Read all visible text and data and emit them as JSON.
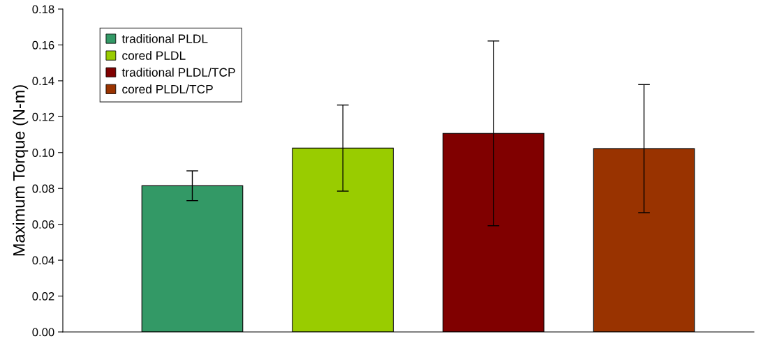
{
  "chart_data": {
    "type": "bar",
    "ylabel": "Maximum Torque (N-m)",
    "categories": [
      null,
      null,
      null,
      null
    ],
    "series": [
      {
        "name": "traditional PLDL",
        "color": "#339966",
        "values": [
          0.0815,
          null,
          null,
          null
        ],
        "errors": [
          0.0083,
          null,
          null,
          null
        ]
      },
      {
        "name": "cored PLDL",
        "color": "#99cc00",
        "values": [
          null,
          0.1025,
          null,
          null
        ],
        "errors": [
          null,
          0.024,
          null,
          null
        ]
      },
      {
        "name": "traditional PLDL/TCP",
        "color": "#800000",
        "values": [
          null,
          null,
          0.1107,
          null
        ],
        "errors": [
          null,
          null,
          0.0515,
          null
        ]
      },
      {
        "name": "cored PLDL/TCP",
        "color": "#993300",
        "values": [
          null,
          null,
          null,
          0.1022
        ],
        "errors": [
          null,
          null,
          null,
          0.0357
        ]
      }
    ],
    "ylim": [
      0,
      0.18
    ],
    "yticks": [
      {
        "value": 0,
        "label": "0.00"
      },
      {
        "value": 0.02,
        "label": "0.02"
      },
      {
        "value": 0.04,
        "label": "0.04"
      },
      {
        "value": 0.06,
        "label": "0.06"
      },
      {
        "value": 0.08,
        "label": "0.08"
      },
      {
        "value": 0.1,
        "label": "0.10"
      },
      {
        "value": 0.12,
        "label": "0.12"
      },
      {
        "value": 0.14,
        "label": "0.14"
      },
      {
        "value": 0.16,
        "label": "0.16"
      },
      {
        "value": 0.18,
        "label": "0.18"
      }
    ],
    "grid": false,
    "legend": "top left"
  }
}
